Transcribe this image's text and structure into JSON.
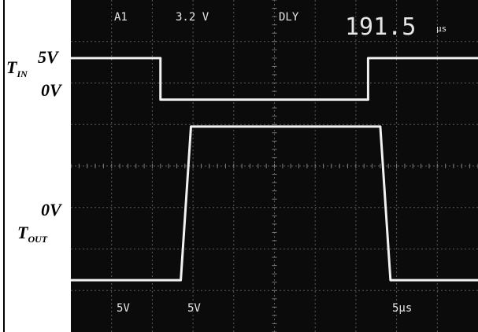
{
  "side_labels": {
    "t_in": {
      "letter": "T",
      "sub": "IN"
    },
    "in_high": "5V",
    "in_low": "0V",
    "out_low": "0V",
    "t_out": {
      "letter": "T",
      "sub": "OUT"
    }
  },
  "scope": {
    "channel": "A1",
    "level": "3.2 V",
    "mode": "DLY",
    "delay_value": "191.5",
    "delay_unit": "μs",
    "ch1_scale": "5V",
    "ch2_scale": "5V",
    "timebase": "5μs"
  },
  "colors": {
    "screen": "#0b0b0b",
    "trace": "#f2f2f2",
    "text": "#e6e6e6"
  },
  "chart_data": {
    "type": "line",
    "xlabel": "",
    "ylabel": "",
    "x_unit": "div",
    "grid": true,
    "grid_divisions": {
      "x": 10,
      "y": 8
    },
    "series": [
      {
        "x": [
          0,
          2.2,
          2.2,
          7.3,
          7.3,
          10
        ],
        "values": [
          6.6,
          6.6,
          5.6,
          5.6,
          6.6,
          6.6
        ]
      },
      {
        "x": [
          0,
          2.7,
          2.95,
          7.6,
          7.85,
          10
        ],
        "values": [
          1.25,
          1.25,
          4.95,
          4.95,
          1.25,
          1.25
        ]
      }
    ]
  }
}
